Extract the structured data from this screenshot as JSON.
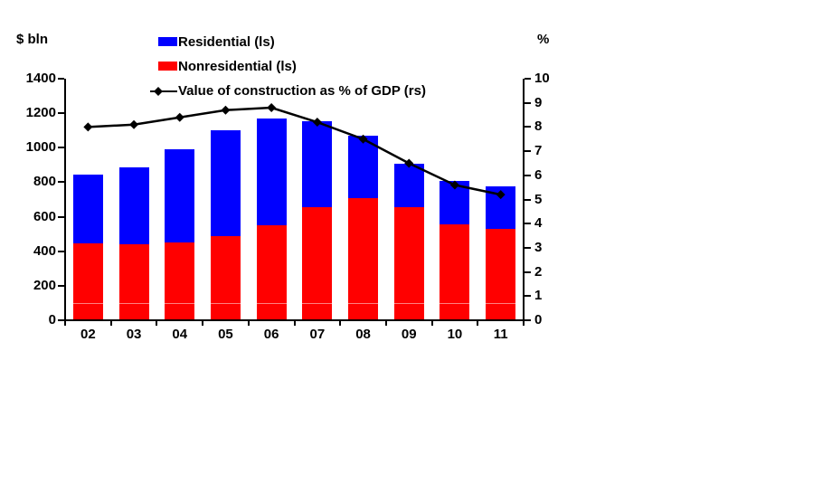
{
  "labels": {
    "left_axis_unit": "$ bln",
    "right_axis_unit": "%"
  },
  "legend": {
    "residential": "Residential (ls)",
    "nonresidential": "Nonresidential (ls)",
    "line": "Value of construction as % of GDP (rs)"
  },
  "colors": {
    "residential": "#0000ff",
    "nonresidential": "#ff0000",
    "line": "#000000",
    "axis": "#000000"
  },
  "chart_data": {
    "type": "bar",
    "subtype": "stacked bars (left scale) with overlaid line (right scale)",
    "title": "",
    "categories": [
      "02",
      "03",
      "04",
      "05",
      "06",
      "07",
      "08",
      "09",
      "10",
      "11"
    ],
    "series": [
      {
        "name": "Nonresidential (ls)",
        "type": "bar",
        "stack": "bottom",
        "axis": "left",
        "color": "#ff0000",
        "values": [
          445,
          440,
          450,
          490,
          550,
          655,
          710,
          655,
          555,
          530
        ]
      },
      {
        "name": "Residential (ls)",
        "type": "bar",
        "stack": "top",
        "axis": "left",
        "color": "#0000ff",
        "values": [
          400,
          445,
          540,
          610,
          620,
          500,
          360,
          250,
          250,
          245
        ]
      },
      {
        "name": "Value of construction as % of GDP (rs)",
        "type": "line",
        "axis": "right",
        "color": "#000000",
        "marker": "diamond",
        "values": [
          8.0,
          8.1,
          8.4,
          8.7,
          8.8,
          8.2,
          7.5,
          6.5,
          5.6,
          5.2
        ]
      }
    ],
    "left_axis": {
      "label": "$ bln",
      "min": 0,
      "max": 1400,
      "tick_step": 200,
      "ticks": [
        0,
        200,
        400,
        600,
        800,
        1000,
        1200,
        1400
      ]
    },
    "right_axis": {
      "label": "%",
      "min": 0,
      "max": 10,
      "tick_step": 1,
      "ticks": [
        0,
        1,
        2,
        3,
        4,
        5,
        6,
        7,
        8,
        9,
        10
      ]
    },
    "grid": false,
    "legend_position": "top-center"
  }
}
